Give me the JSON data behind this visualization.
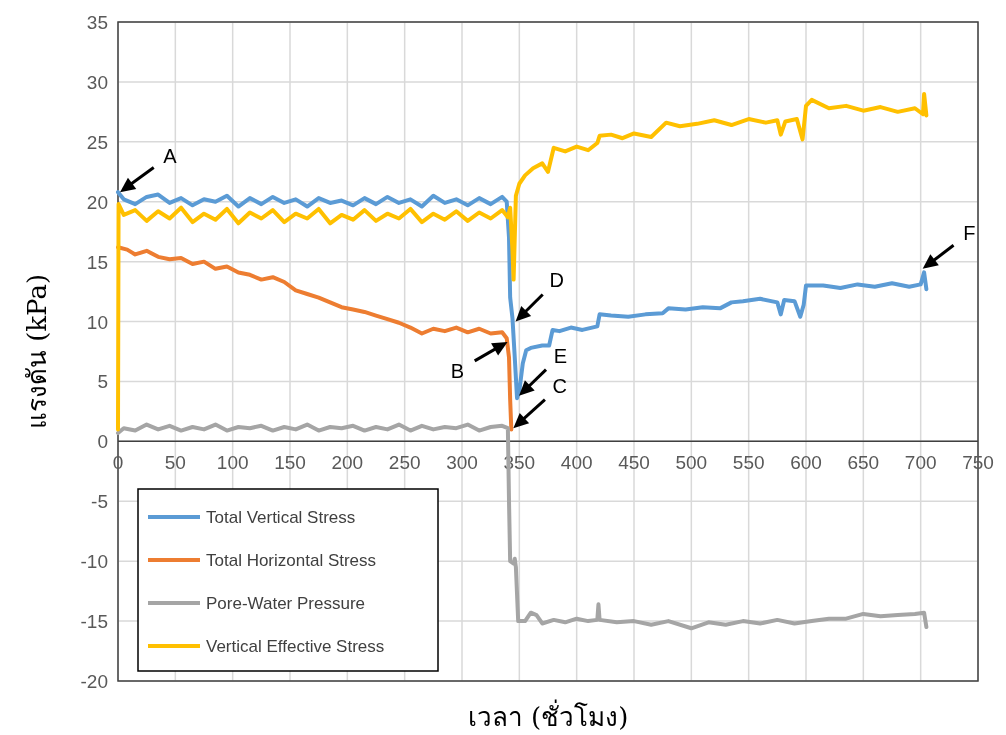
{
  "chart_data": {
    "type": "line",
    "xlabel": "เวลา (ชั่วโมง)",
    "ylabel": "แรงดัน (kPa)",
    "xlim": [
      0,
      750
    ],
    "xticks": [
      0,
      50,
      100,
      150,
      200,
      250,
      300,
      350,
      400,
      450,
      500,
      550,
      600,
      650,
      700,
      750
    ],
    "ylim": [
      -20,
      35
    ],
    "yticks": [
      -20,
      -15,
      -10,
      -5,
      0,
      5,
      10,
      15,
      20,
      25,
      30,
      35
    ],
    "grid": true,
    "legend": "bottom left",
    "series": [
      {
        "name": "Total Vertical Stress",
        "color": "#5b9bd5",
        "x": [
          0,
          5,
          15,
          25,
          35,
          45,
          55,
          65,
          75,
          85,
          95,
          105,
          115,
          125,
          135,
          145,
          155,
          165,
          175,
          185,
          195,
          205,
          215,
          225,
          235,
          245,
          255,
          265,
          275,
          285,
          295,
          305,
          315,
          325,
          335,
          339,
          341,
          342,
          344,
          346,
          348,
          350,
          353,
          356,
          360,
          370,
          376,
          379,
          385,
          395,
          405,
          418,
          420,
          430,
          445,
          460,
          475,
          480,
          495,
          510,
          525,
          535,
          545,
          560,
          575,
          578,
          581,
          590,
          595,
          598,
          600,
          615,
          630,
          645,
          660,
          675,
          690,
          700,
          703,
          705
        ],
        "values": [
          20.8,
          20.2,
          19.8,
          20.4,
          20.6,
          19.9,
          20.3,
          19.7,
          20.2,
          20.0,
          20.5,
          19.6,
          20.3,
          19.8,
          20.4,
          19.9,
          20.2,
          19.6,
          20.3,
          19.9,
          20.1,
          19.7,
          20.3,
          19.8,
          20.4,
          19.9,
          20.2,
          19.6,
          20.5,
          19.9,
          20.2,
          19.7,
          20.3,
          19.8,
          20.4,
          20.0,
          17,
          12,
          10.3,
          7,
          3.6,
          4.2,
          6.5,
          7.6,
          7.8,
          8.0,
          8.0,
          9.3,
          9.2,
          9.5,
          9.3,
          9.6,
          10.6,
          10.5,
          10.4,
          10.6,
          10.7,
          11.1,
          11.0,
          11.2,
          11.1,
          11.6,
          11.7,
          11.9,
          11.6,
          10.6,
          11.8,
          11.7,
          10.4,
          11.4,
          13.0,
          13.0,
          12.8,
          13.1,
          12.9,
          13.2,
          12.9,
          13.1,
          14.1,
          12.7
        ]
      },
      {
        "name": "Total Horizontal Stress",
        "color": "#ed7d31",
        "x": [
          0,
          8,
          15,
          25,
          35,
          45,
          55,
          65,
          75,
          85,
          95,
          105,
          115,
          125,
          135,
          145,
          155,
          165,
          175,
          185,
          195,
          205,
          215,
          225,
          235,
          245,
          255,
          265,
          275,
          285,
          295,
          305,
          315,
          325,
          335,
          339,
          341,
          342,
          343
        ],
        "values": [
          16.2,
          16.0,
          15.6,
          15.9,
          15.4,
          15.2,
          15.3,
          14.8,
          15.0,
          14.4,
          14.6,
          14.1,
          13.9,
          13.5,
          13.7,
          13.3,
          12.6,
          12.3,
          12.0,
          11.6,
          11.2,
          11.0,
          10.8,
          10.5,
          10.2,
          9.9,
          9.5,
          9.0,
          9.4,
          9.2,
          9.5,
          9.1,
          9.4,
          9.0,
          9.1,
          8.6,
          7.0,
          3.5,
          1.0
        ]
      },
      {
        "name": "Pore-Water Pressure",
        "color": "#a5a5a5",
        "x": [
          0,
          5,
          15,
          25,
          35,
          45,
          55,
          65,
          75,
          85,
          95,
          105,
          115,
          125,
          135,
          145,
          155,
          165,
          175,
          185,
          195,
          205,
          215,
          225,
          235,
          245,
          255,
          265,
          275,
          285,
          295,
          305,
          315,
          325,
          335,
          340,
          341,
          342,
          345,
          346,
          347,
          349,
          355,
          360,
          365,
          370,
          380,
          390,
          400,
          410,
          418,
          419,
          420,
          435,
          450,
          465,
          480,
          500,
          515,
          530,
          545,
          560,
          575,
          590,
          605,
          620,
          635,
          650,
          665,
          680,
          695,
          703,
          705
        ],
        "values": [
          0.7,
          1.1,
          0.9,
          1.4,
          1.0,
          1.3,
          0.9,
          1.2,
          1.0,
          1.4,
          0.9,
          1.2,
          1.1,
          1.3,
          0.9,
          1.2,
          1.0,
          1.4,
          0.9,
          1.2,
          1.1,
          1.3,
          0.9,
          1.2,
          1.0,
          1.4,
          0.9,
          1.3,
          1.0,
          1.2,
          1.1,
          1.4,
          0.9,
          1.2,
          1.3,
          1.1,
          -5,
          -10,
          -10.2,
          -9.8,
          -10.5,
          -15,
          -15,
          -14.3,
          -14.5,
          -15.2,
          -14.9,
          -15.1,
          -14.8,
          -15.0,
          -14.9,
          -13.6,
          -14.9,
          -15.1,
          -15.0,
          -15.3,
          -15.0,
          -15.6,
          -15.1,
          -15.3,
          -15.0,
          -15.2,
          -14.9,
          -15.2,
          -15.0,
          -14.8,
          -14.8,
          -14.4,
          -14.6,
          -14.5,
          -14.4,
          -14.3,
          -15.5
        ]
      },
      {
        "name": "Vertical Effective Stress",
        "color": "#ffc000",
        "x": [
          0,
          0.5,
          5,
          15,
          25,
          35,
          45,
          55,
          65,
          75,
          85,
          95,
          105,
          115,
          125,
          135,
          145,
          155,
          165,
          175,
          185,
          195,
          205,
          215,
          225,
          235,
          245,
          255,
          265,
          275,
          285,
          295,
          305,
          315,
          325,
          335,
          340,
          342,
          344,
          345,
          346,
          347,
          350,
          355,
          362,
          370,
          375,
          380,
          390,
          400,
          410,
          418,
          420,
          430,
          440,
          450,
          465,
          478,
          490,
          505,
          520,
          535,
          550,
          565,
          575,
          578,
          582,
          592,
          597,
          600,
          605,
          620,
          635,
          650,
          665,
          680,
          695,
          702,
          703,
          705
        ],
        "values": [
          1.0,
          19.8,
          18.9,
          19.3,
          18.4,
          19.2,
          18.6,
          19.5,
          18.3,
          19.0,
          18.5,
          19.4,
          18.2,
          19.1,
          18.6,
          19.3,
          18.3,
          19.0,
          18.6,
          19.4,
          18.2,
          18.9,
          18.5,
          19.3,
          18.4,
          19.0,
          18.6,
          19.4,
          18.3,
          19.0,
          18.5,
          19.2,
          18.4,
          19.1,
          18.6,
          19.3,
          18.7,
          19.5,
          16,
          13.5,
          17,
          20.5,
          21.5,
          22.2,
          22.8,
          23.2,
          22.5,
          24.5,
          24.2,
          24.6,
          24.3,
          24.9,
          25.5,
          25.6,
          25.3,
          25.7,
          25.4,
          26.6,
          26.3,
          26.5,
          26.8,
          26.4,
          26.9,
          26.6,
          26.8,
          25.6,
          26.7,
          26.9,
          25.2,
          28.0,
          28.5,
          27.8,
          28.0,
          27.6,
          27.9,
          27.5,
          27.8,
          27.3,
          29.0,
          27.2
        ]
      }
    ],
    "annotations": [
      {
        "text": "A",
        "x": 0,
        "y": 20.8
      },
      {
        "text": "B",
        "x": 338,
        "y": 8.3
      },
      {
        "text": "C",
        "x": 343,
        "y": 1.1
      },
      {
        "text": "D",
        "x": 345,
        "y": 10.0
      },
      {
        "text": "E",
        "x": 348,
        "y": 3.8
      },
      {
        "text": "F",
        "x": 700,
        "y": 14.4
      }
    ]
  }
}
